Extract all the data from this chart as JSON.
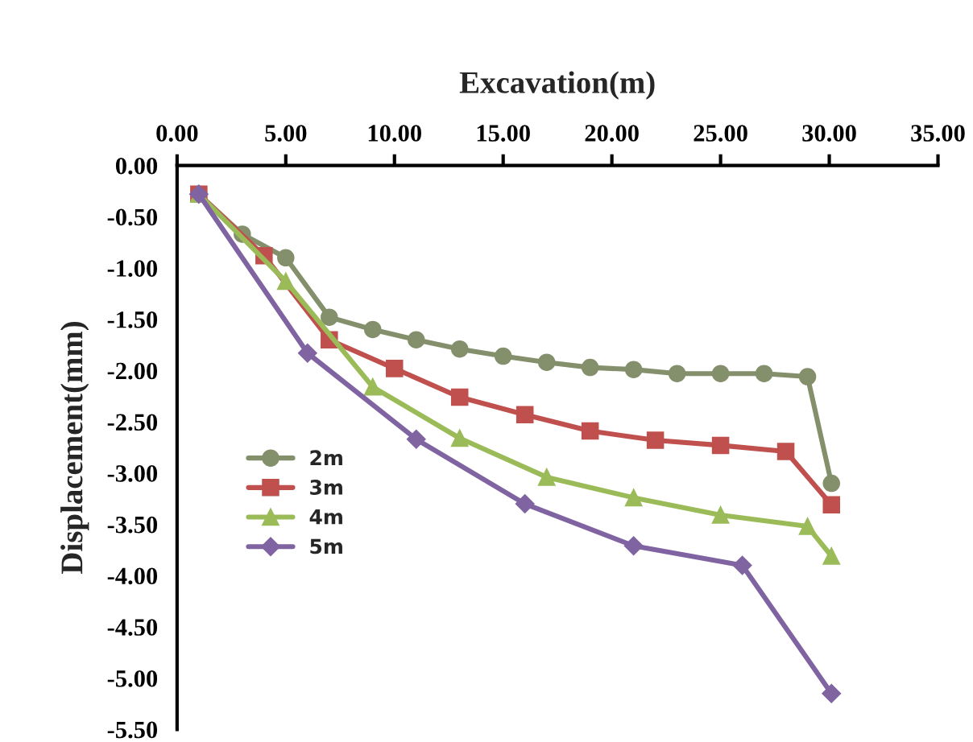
{
  "chart_data": {
    "type": "line",
    "xlabel": "Excavation(m)",
    "ylabel": "Displacement(mm)",
    "xlim": [
      0,
      35
    ],
    "xticks": [
      {
        "value": 0,
        "label": "0.00"
      },
      {
        "value": 5,
        "label": "5.00"
      },
      {
        "value": 10,
        "label": "10.00"
      },
      {
        "value": 15,
        "label": "15.00"
      },
      {
        "value": 20,
        "label": "20.00"
      },
      {
        "value": 25,
        "label": "25.00"
      },
      {
        "value": 30,
        "label": "30.00"
      },
      {
        "value": 35,
        "label": "35.00"
      }
    ],
    "ylim": [
      -5.5,
      0
    ],
    "yticks": [
      {
        "value": 0,
        "label": "0.00"
      },
      {
        "value": -0.5,
        "label": "-0.50"
      },
      {
        "value": -1,
        "label": "-1.00"
      },
      {
        "value": -1.5,
        "label": "-1.50"
      },
      {
        "value": -2,
        "label": "-2.00"
      },
      {
        "value": -2.5,
        "label": "-2.50"
      },
      {
        "value": -3,
        "label": "-3.00"
      },
      {
        "value": -3.5,
        "label": "-3.50"
      },
      {
        "value": -4,
        "label": "-4.00"
      },
      {
        "value": -4.5,
        "label": "-4.50"
      },
      {
        "value": -5,
        "label": "-5.00"
      },
      {
        "value": -5.5,
        "label": "-5.50"
      }
    ],
    "grid": false,
    "legend": "left",
    "line_style": "solid",
    "series": [
      {
        "name": "2m",
        "color": "#848f6c",
        "marker": "circle",
        "x": [
          1,
          3,
          5,
          7,
          9,
          11,
          13,
          15,
          17,
          19,
          21,
          23,
          25,
          27,
          29,
          30.1
        ],
        "values": [
          -0.28,
          -0.67,
          -0.9,
          -1.48,
          -1.6,
          -1.7,
          -1.79,
          -1.86,
          -1.92,
          -1.97,
          -1.99,
          -2.03,
          -2.03,
          -2.03,
          -2.06,
          -3.1
        ]
      },
      {
        "name": "3m",
        "color": "#c0504d",
        "marker": "square",
        "x": [
          1,
          4,
          7,
          10,
          13,
          16,
          19,
          22,
          25,
          28,
          30.1
        ],
        "values": [
          -0.28,
          -0.88,
          -1.7,
          -1.98,
          -2.26,
          -2.43,
          -2.59,
          -2.68,
          -2.73,
          -2.79,
          -3.31
        ]
      },
      {
        "name": "4m",
        "color": "#9bbb59",
        "marker": "triangle",
        "x": [
          1,
          5,
          9,
          13,
          17,
          21,
          25,
          29,
          30.1
        ],
        "values": [
          -0.28,
          -1.13,
          -2.16,
          -2.66,
          -3.04,
          -3.24,
          -3.41,
          -3.52,
          -3.81
        ]
      },
      {
        "name": "5m",
        "color": "#8064a2",
        "marker": "diamond",
        "x": [
          1,
          6,
          11,
          16,
          21,
          26,
          30.1
        ],
        "values": [
          -0.28,
          -1.83,
          -2.67,
          -3.3,
          -3.71,
          -3.9,
          -5.15
        ]
      }
    ]
  }
}
